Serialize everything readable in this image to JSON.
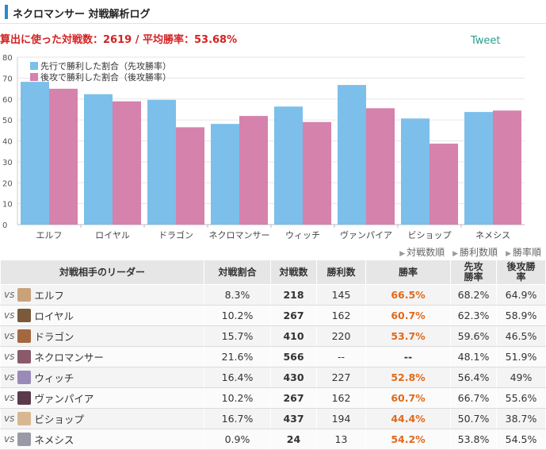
{
  "header": {
    "title": "ネクロマンサー 対戦解析ログ"
  },
  "summary": "算出に使った対戦数：2619 / 平均勝率：53.68%",
  "tweet_label": "Tweet",
  "colors": {
    "first": "#7cbfea",
    "second": "#d582ad",
    "accent": "#d42222",
    "rate": "#e06a1c"
  },
  "chart_data": {
    "type": "bar",
    "categories": [
      "エルフ",
      "ロイヤル",
      "ドラゴン",
      "ネクロマンサー",
      "ウィッチ",
      "ヴァンパイア",
      "ビショップ",
      "ネメシス"
    ],
    "series": [
      {
        "name": "先行で勝利した割合（先攻勝率）",
        "values": [
          68.2,
          62.3,
          59.6,
          48.1,
          56.4,
          66.7,
          50.7,
          53.8
        ]
      },
      {
        "name": "後攻で勝利した割合（後攻勝率）",
        "values": [
          64.9,
          58.9,
          46.5,
          51.9,
          49.0,
          55.6,
          38.7,
          54.5
        ]
      }
    ],
    "yticks": [
      0,
      10,
      20,
      30,
      40,
      50,
      60,
      70,
      80
    ],
    "ylim": [
      0,
      80
    ],
    "grid": true,
    "legend": "top-left"
  },
  "sort_links": [
    "対戦数順",
    "勝利数順",
    "勝率順"
  ],
  "table": {
    "headers": [
      "対戦相手のリーダー",
      "対戦割合",
      "対戦数",
      "勝利数",
      "勝率",
      "先攻勝率",
      "後攻勝率"
    ],
    "vs_label": "vs",
    "rows": [
      {
        "leader": "エルフ",
        "avatar": "#c9a27a",
        "ratio": "8.3%",
        "matches": "218",
        "wins": "145",
        "rate": "66.5%",
        "first": "68.2%",
        "second": "64.9%"
      },
      {
        "leader": "ロイヤル",
        "avatar": "#7a5a3a",
        "ratio": "10.2%",
        "matches": "267",
        "wins": "162",
        "rate": "60.7%",
        "first": "62.3%",
        "second": "58.9%"
      },
      {
        "leader": "ドラゴン",
        "avatar": "#a5673f",
        "ratio": "15.7%",
        "matches": "410",
        "wins": "220",
        "rate": "53.7%",
        "first": "59.6%",
        "second": "46.5%"
      },
      {
        "leader": "ネクロマンサー",
        "avatar": "#8a5a6a",
        "ratio": "21.6%",
        "matches": "566",
        "wins": "--",
        "rate": "--",
        "first": "48.1%",
        "second": "51.9%"
      },
      {
        "leader": "ウィッチ",
        "avatar": "#9a8ab8",
        "ratio": "16.4%",
        "matches": "430",
        "wins": "227",
        "rate": "52.8%",
        "first": "56.4%",
        "second": "49%"
      },
      {
        "leader": "ヴァンパイア",
        "avatar": "#5a3a4a",
        "ratio": "10.2%",
        "matches": "267",
        "wins": "162",
        "rate": "60.7%",
        "first": "66.7%",
        "second": "55.6%"
      },
      {
        "leader": "ビショップ",
        "avatar": "#d8b890",
        "ratio": "16.7%",
        "matches": "437",
        "wins": "194",
        "rate": "44.4%",
        "first": "50.7%",
        "second": "38.7%"
      },
      {
        "leader": "ネメシス",
        "avatar": "#9a9aa6",
        "ratio": "0.9%",
        "matches": "24",
        "wins": "13",
        "rate": "54.2%",
        "first": "53.8%",
        "second": "54.5%"
      }
    ]
  }
}
